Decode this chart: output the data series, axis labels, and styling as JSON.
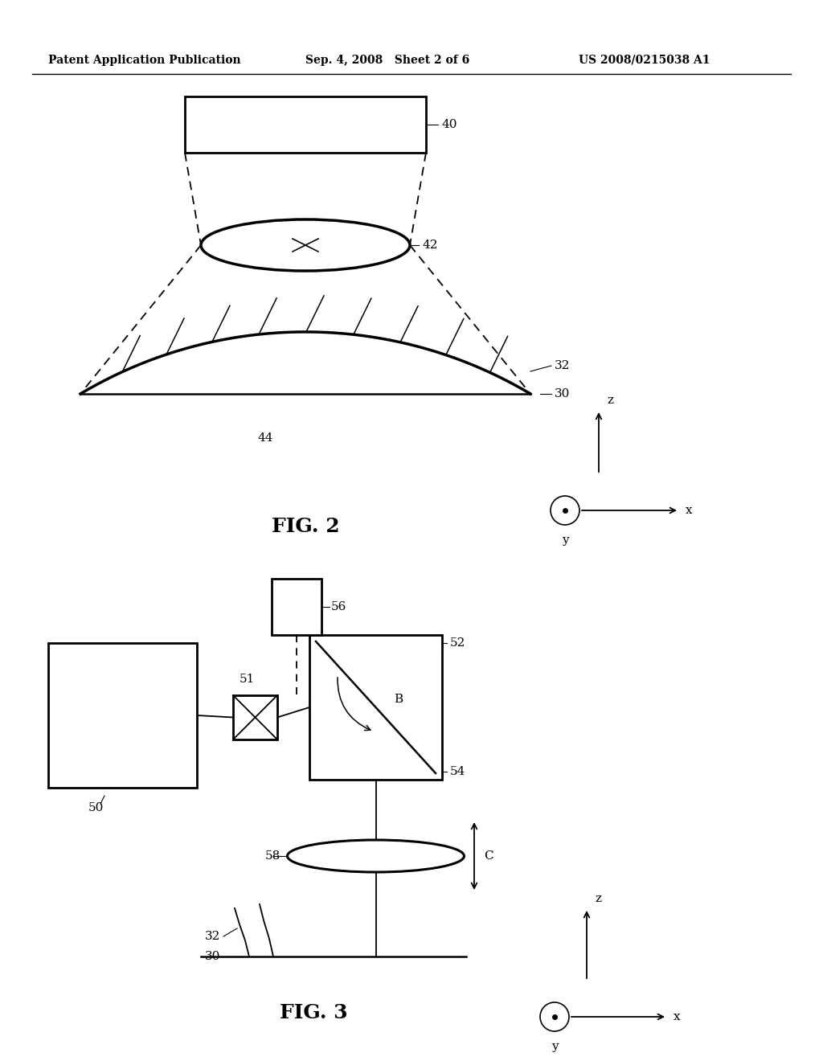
{
  "header_left": "Patent Application Publication",
  "header_mid": "Sep. 4, 2008   Sheet 2 of 6",
  "header_right": "US 2008/0215038 A1",
  "fig2_label": "FIG. 2",
  "fig3_label": "FIG. 3",
  "bg_color": "#ffffff",
  "line_color": "#000000"
}
